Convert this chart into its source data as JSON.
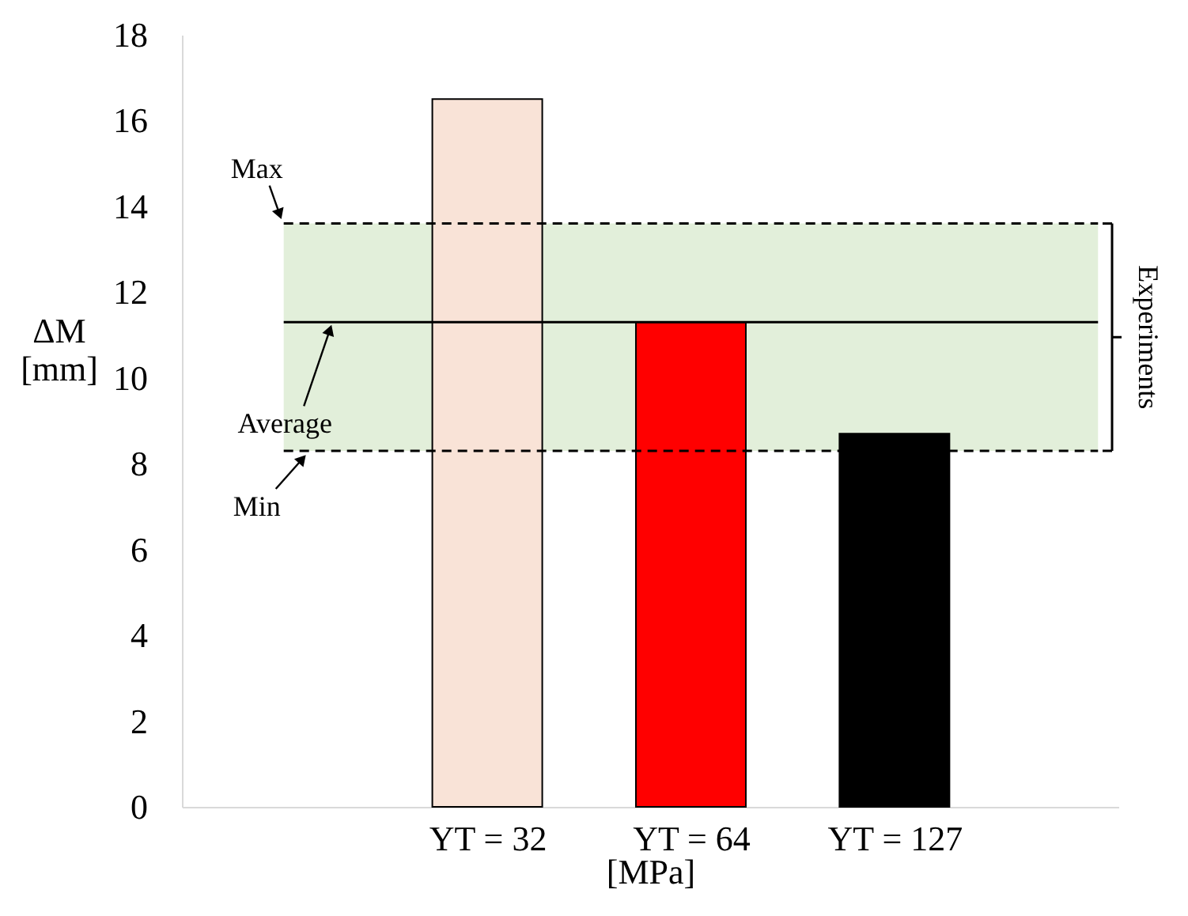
{
  "chart_data": {
    "type": "bar",
    "categories": [
      null,
      "YT = 32",
      "YT = 64",
      "YT = 127",
      null
    ],
    "values": [
      null,
      16.5,
      11.3,
      8.7,
      null
    ],
    "colors": [
      "#ffffff",
      "#f9e3d7",
      "#ff0000",
      "#000000",
      "#ffffff"
    ],
    "xlabel": "[MPa]",
    "ylabel": "ΔM [mm]",
    "ylim": [
      0,
      18
    ],
    "yticks": [
      0,
      2,
      4,
      6,
      8,
      10,
      12,
      14,
      16,
      18
    ],
    "ref_lines": [
      {
        "axis": "y",
        "value": 13.6,
        "label": "Max",
        "line_style": "dashed",
        "color": "#000000"
      },
      {
        "axis": "y",
        "value": 11.3,
        "label": "Average",
        "line_style": "solid",
        "color": "#000000"
      },
      {
        "axis": "y",
        "value": 8.3,
        "label": "Min",
        "line_style": "dashed",
        "color": "#000000"
      }
    ],
    "bands": [
      {
        "axis": "y",
        "from": 8.3,
        "to": 13.6,
        "label": "Experiments",
        "color": "#e2efda"
      }
    ],
    "grid": false
  }
}
